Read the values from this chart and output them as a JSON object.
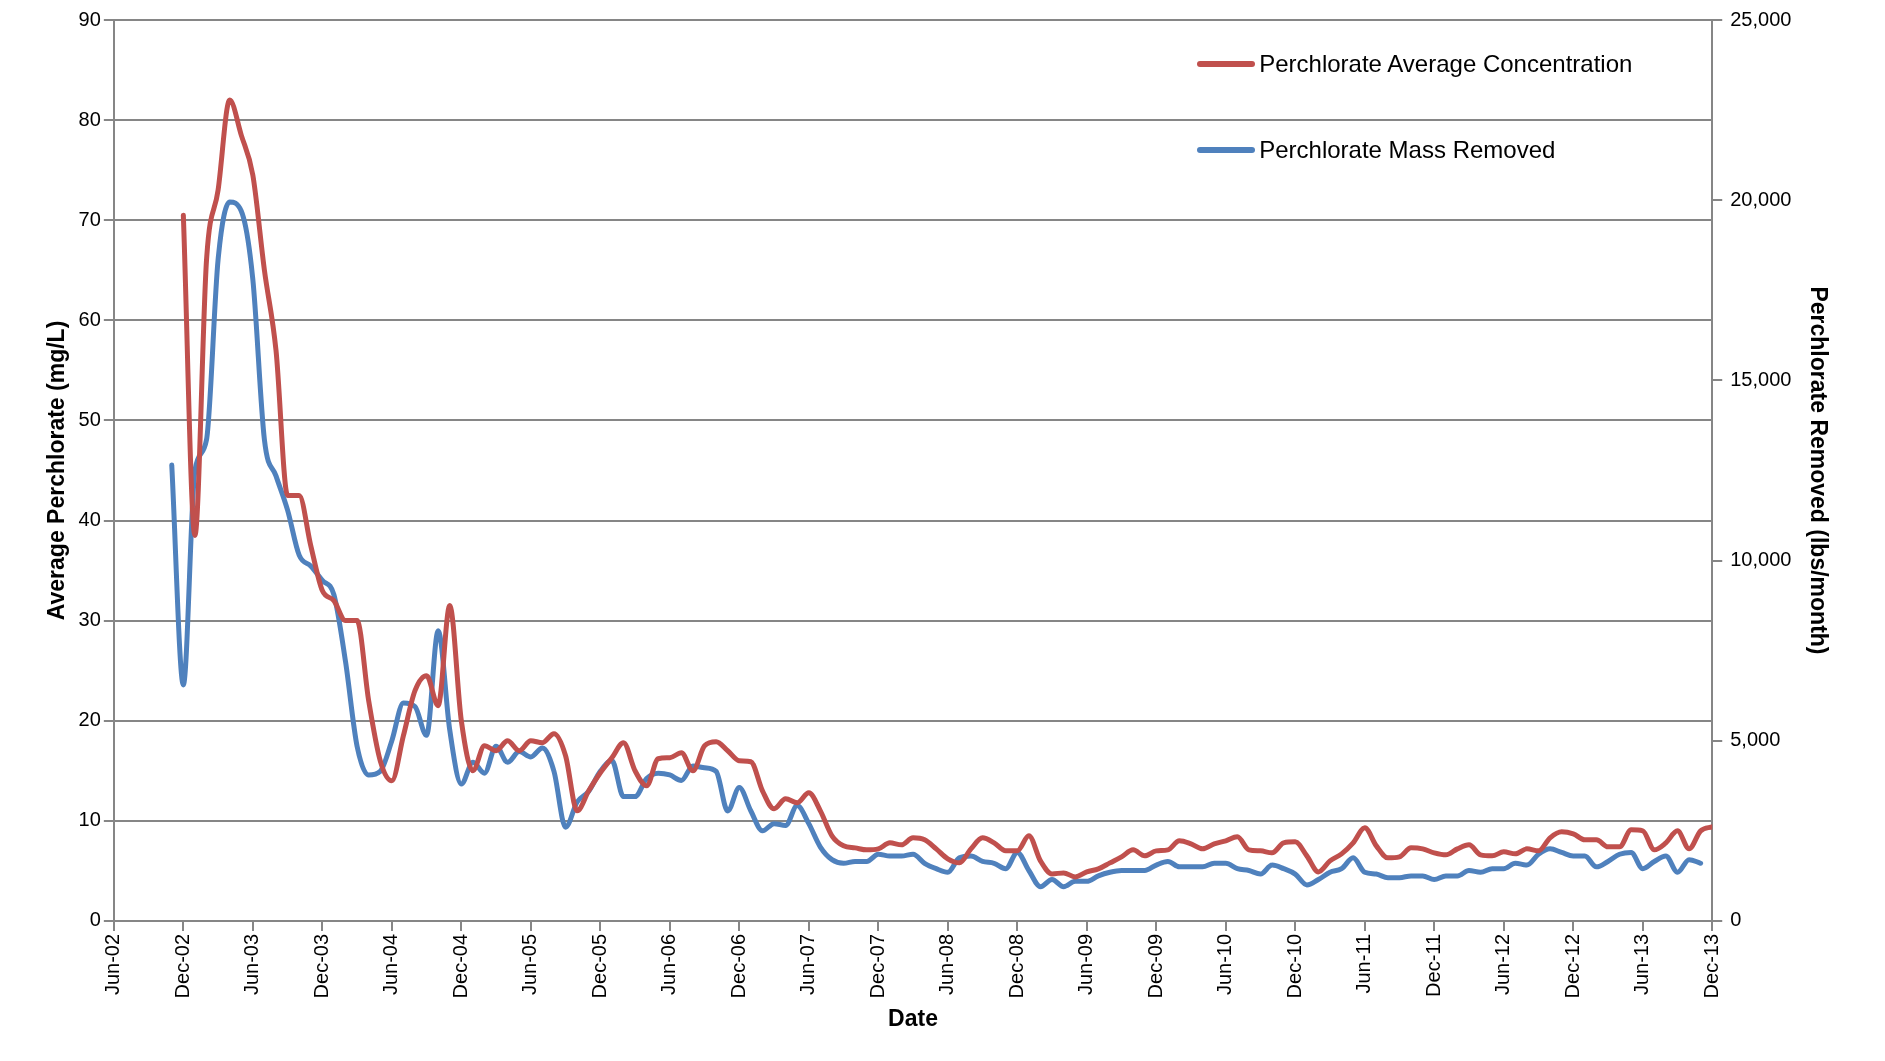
{
  "chart_data": {
    "type": "line",
    "xlabel": "Date",
    "ylabel": "Average Perchlorate (mg/L)",
    "y2label": "Perchlorate Removed (lbs/month)",
    "x": [
      "2002-11",
      "2002-12",
      "2003-01",
      "2003-02",
      "2003-03",
      "2003-04",
      "2003-05",
      "2003-06",
      "2003-07",
      "2003-08",
      "2003-09",
      "2003-10",
      "2003-11",
      "2003-12",
      "2004-01",
      "2004-02",
      "2004-03",
      "2004-04",
      "2004-05",
      "2004-06",
      "2004-07",
      "2004-08",
      "2004-09",
      "2004-10",
      "2004-11",
      "2004-12",
      "2005-01",
      "2005-02",
      "2005-03",
      "2005-04",
      "2005-05",
      "2005-06",
      "2005-07",
      "2005-08",
      "2005-09",
      "2005-10",
      "2005-11",
      "2005-12",
      "2006-01",
      "2006-02",
      "2006-03",
      "2006-04",
      "2006-05",
      "2006-06",
      "2006-07",
      "2006-08",
      "2006-09",
      "2006-10",
      "2006-11",
      "2006-12",
      "2007-01",
      "2007-02",
      "2007-03",
      "2007-04",
      "2007-05",
      "2007-06",
      "2007-07",
      "2007-08",
      "2007-09",
      "2007-10",
      "2007-11",
      "2007-12",
      "2008-01",
      "2008-02",
      "2008-03",
      "2008-04",
      "2008-05",
      "2008-06",
      "2008-07",
      "2008-08",
      "2008-09",
      "2008-10",
      "2008-11",
      "2008-12",
      "2009-01",
      "2009-02",
      "2009-03",
      "2009-04",
      "2009-05",
      "2009-06",
      "2009-07",
      "2009-08",
      "2009-09",
      "2009-10",
      "2009-11",
      "2009-12",
      "2010-01",
      "2010-02",
      "2010-03",
      "2010-04",
      "2010-05",
      "2010-06",
      "2010-07",
      "2010-08",
      "2010-09",
      "2010-10",
      "2010-11",
      "2010-12",
      "2011-01",
      "2011-02",
      "2011-03",
      "2011-04",
      "2011-05",
      "2011-06",
      "2011-07",
      "2011-08",
      "2011-09",
      "2011-10",
      "2011-11",
      "2011-12",
      "2012-01",
      "2012-02",
      "2012-03",
      "2012-04",
      "2012-05",
      "2012-06",
      "2012-07",
      "2012-08",
      "2012-09",
      "2012-10",
      "2012-11",
      "2012-12",
      "2013-01",
      "2013-02",
      "2013-03",
      "2013-04",
      "2013-05",
      "2013-06",
      "2013-07",
      "2013-08",
      "2013-09",
      "2013-10",
      "2013-11",
      "2013-12"
    ],
    "series": [
      {
        "name": "Perchlorate Average Concentration",
        "color": "#c0504d",
        "values": [
          null,
          70.5,
          38.5,
          66,
          73,
          82,
          78.5,
          74.5,
          65,
          57,
          42.5,
          42.5,
          37.5,
          33,
          32,
          30,
          30,
          22,
          16,
          14,
          18.5,
          23,
          24.5,
          21.5,
          31.5,
          20,
          15,
          17.5,
          17,
          18,
          17,
          18,
          17.8,
          18.7,
          16.5,
          11,
          13,
          14.8,
          16.3,
          17.8,
          15,
          13.5,
          16.2,
          16.3,
          16.8,
          15,
          17.5,
          17.9,
          17,
          16,
          15.9,
          13,
          11.2,
          12.2,
          11.8,
          12.8,
          11,
          8.5,
          7.5,
          7.3,
          7.1,
          7.2,
          7.8,
          7.6,
          8.3,
          8.1,
          7.2,
          6.2,
          5.8,
          7.2,
          8.3,
          7.8,
          7,
          7,
          8.5,
          6,
          4.7,
          4.8,
          4.4,
          4.9,
          5.2,
          5.8,
          6.4,
          7.1,
          6.5,
          7,
          7.1,
          8,
          7.7,
          7.2,
          7.7,
          8,
          8.4,
          7.1,
          7,
          6.8,
          7.8,
          7.9,
          6.5,
          4.9,
          6,
          6.7,
          7.8,
          9.3,
          7.5,
          6.3,
          6.4,
          7.3,
          7.2,
          6.8,
          6.6,
          7.2,
          7.6,
          6.6,
          6.5,
          6.9,
          6.7,
          7.2,
          7,
          8.3,
          8.9,
          8.7,
          8.1,
          8.1,
          7.4,
          7.4,
          9.1,
          9,
          7.1,
          7.8,
          9,
          7.2,
          9,
          9.4
        ]
      },
      {
        "name": "Perchlorate Mass Removed",
        "color": "#4f81bd",
        "axis": "y2",
        "values": [
          12650,
          6550,
          12500,
          13350,
          18350,
          19950,
          19700,
          17800,
          13350,
          12350,
          11400,
          10150,
          9850,
          9450,
          9050,
          7200,
          4850,
          4050,
          4150,
          5000,
          6050,
          5950,
          5150,
          8050,
          5300,
          3800,
          4400,
          4100,
          4850,
          4400,
          4700,
          4550,
          4800,
          4150,
          2600,
          3300,
          3600,
          4150,
          4450,
          3450,
          3450,
          3950,
          4100,
          4050,
          3900,
          4300,
          4250,
          4150,
          3050,
          3700,
          3050,
          2500,
          2700,
          2650,
          3200,
          2700,
          2050,
          1700,
          1600,
          1650,
          1650,
          1850,
          1800,
          1800,
          1850,
          1600,
          1450,
          1350,
          1750,
          1800,
          1650,
          1600,
          1450,
          1900,
          1400,
          950,
          1150,
          950,
          1100,
          1100,
          1250,
          1350,
          1400,
          1400,
          1400,
          1550,
          1650,
          1500,
          1500,
          1500,
          1600,
          1600,
          1450,
          1400,
          1300,
          1550,
          1450,
          1300,
          1000,
          1150,
          1350,
          1450,
          1750,
          1350,
          1300,
          1200,
          1200,
          1250,
          1250,
          1150,
          1250,
          1250,
          1400,
          1350,
          1450,
          1450,
          1600,
          1550,
          1850,
          2000,
          1900,
          1800,
          1800,
          1500,
          1650,
          1850,
          1900,
          1450,
          1650,
          1800,
          1350,
          1700,
          1600,
          null
        ]
      }
    ],
    "xlim": [
      "2002-06",
      "2013-12"
    ],
    "xticks": [
      {
        "value": "2002-06",
        "label": "Jun-02"
      },
      {
        "value": "2002-12",
        "label": "Dec-02"
      },
      {
        "value": "2003-06",
        "label": "Jun-03"
      },
      {
        "value": "2003-12",
        "label": "Dec-03"
      },
      {
        "value": "2004-06",
        "label": "Jun-04"
      },
      {
        "value": "2004-12",
        "label": "Dec-04"
      },
      {
        "value": "2005-06",
        "label": "Jun-05"
      },
      {
        "value": "2005-12",
        "label": "Dec-05"
      },
      {
        "value": "2006-06",
        "label": "Jun-06"
      },
      {
        "value": "2006-12",
        "label": "Dec-06"
      },
      {
        "value": "2007-06",
        "label": "Jun-07"
      },
      {
        "value": "2007-12",
        "label": "Dec-07"
      },
      {
        "value": "2008-06",
        "label": "Jun-08"
      },
      {
        "value": "2008-12",
        "label": "Dec-08"
      },
      {
        "value": "2009-06",
        "label": "Jun-09"
      },
      {
        "value": "2009-12",
        "label": "Dec-09"
      },
      {
        "value": "2010-06",
        "label": "Jun-10"
      },
      {
        "value": "2010-12",
        "label": "Dec-10"
      },
      {
        "value": "2011-06",
        "label": "Jun-11"
      },
      {
        "value": "2011-12",
        "label": "Dec-11"
      },
      {
        "value": "2012-06",
        "label": "Jun-12"
      },
      {
        "value": "2012-12",
        "label": "Dec-12"
      },
      {
        "value": "2013-06",
        "label": "Jun-13"
      },
      {
        "value": "2013-12",
        "label": "Dec-13"
      }
    ],
    "ylim": [
      0,
      90
    ],
    "yticks": [
      0,
      10,
      20,
      30,
      40,
      50,
      60,
      70,
      80,
      90
    ],
    "y2lim": [
      0,
      25000
    ],
    "y2ticks": [
      {
        "value": 0,
        "label": "0"
      },
      {
        "value": 5000,
        "label": "5,000"
      },
      {
        "value": 10000,
        "label": "10,000"
      },
      {
        "value": 15000,
        "label": "15,000"
      },
      {
        "value": 20000,
        "label": "20,000"
      },
      {
        "value": 25000,
        "label": "25,000"
      }
    ],
    "grid": "y",
    "legend": "top right",
    "marker": "none",
    "line_style": "solid"
  }
}
